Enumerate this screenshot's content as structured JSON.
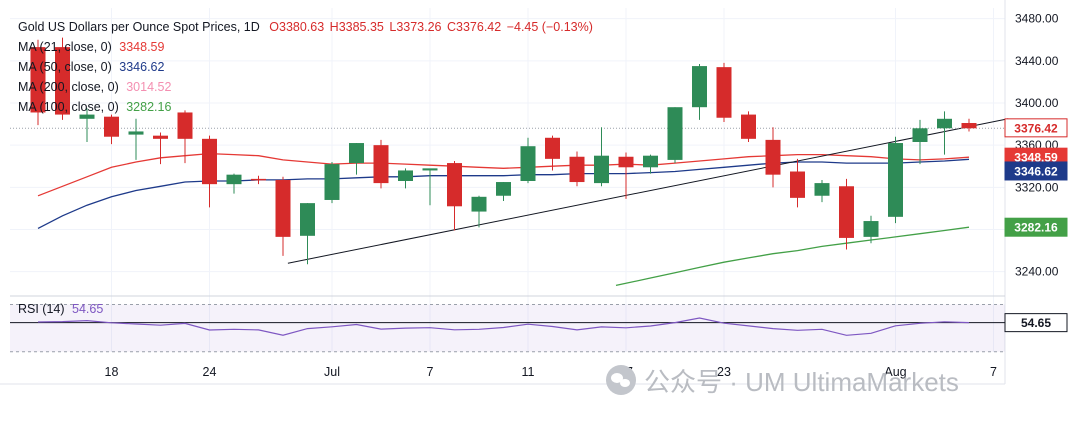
{
  "legend": {
    "title": "Gold US Dollars per Ounce Spot Prices, 1D",
    "open_label": "O",
    "open": "3380.63",
    "high_label": "H",
    "high": "3385.35",
    "low_label": "L",
    "low": "3373.26",
    "close_label": "C",
    "close": "3376.42",
    "change": "−4.45 (−0.13%)",
    "ma_rows": [
      {
        "label": "MA (21, close, 0)",
        "value": "3348.59",
        "color": "#e53935"
      },
      {
        "label": "MA (50, close, 0)",
        "value": "3346.62",
        "color": "#1e3a8a"
      },
      {
        "label": "MA (200, close, 0)",
        "value": "3014.52",
        "color": "#f48fb1"
      },
      {
        "label": "MA (100, close, 0)",
        "value": "3282.16",
        "color": "#43a047"
      }
    ]
  },
  "rsi_legend": {
    "label": "RSI (14)",
    "value": "54.65"
  },
  "price_tags": [
    {
      "text": "3376.42",
      "bg": "#ffffff",
      "fg": "#d62b2b",
      "border": "#d62b2b",
      "price": 3376.42
    },
    {
      "text": "3348.59",
      "bg": "#e53935",
      "fg": "#ffffff",
      "border": "#e53935",
      "price": 3348.59
    },
    {
      "text": "3346.62",
      "bg": "#1e3a8a",
      "fg": "#ffffff",
      "border": "#1e3a8a",
      "price": 3335.5
    },
    {
      "text": "3282.16",
      "bg": "#43a047",
      "fg": "#ffffff",
      "border": "#43a047",
      "price": 3282.16
    }
  ],
  "rsi_tag": {
    "text": "54.65",
    "bg": "#ffffff",
    "fg": "#131722"
  },
  "watermark": {
    "text": "公众号 · UM UltimaMarkets"
  },
  "colors": {
    "up": "#2e8b57",
    "down": "#d62b2b",
    "wick": "#555555",
    "ma21": "#e53935",
    "ma50": "#1e3a8a",
    "ma100": "#43a047",
    "trendline": "#131722",
    "rsi": "#7e57c2",
    "grid": "#f0f3fa",
    "axis_text": "#131722"
  },
  "chart_data": {
    "type": "candlestick",
    "title": "Gold US Dollars per Ounce Spot Prices, 1D",
    "price_axis": {
      "ticks": [
        3240,
        3280,
        3320,
        3360,
        3400,
        3440,
        3480
      ],
      "range": [
        3210,
        3485
      ]
    },
    "x_ticks": [
      {
        "label": "18",
        "index": 3
      },
      {
        "label": "24",
        "index": 7
      },
      {
        "label": "Jul",
        "index": 12
      },
      {
        "label": "7",
        "index": 16
      },
      {
        "label": "11",
        "index": 20
      },
      {
        "label": "17",
        "index": 24
      },
      {
        "label": "23",
        "index": 28
      },
      {
        "label": "Aug",
        "index": 35
      },
      {
        "label": "7",
        "index": 39
      }
    ],
    "candles": [
      {
        "o": 3453,
        "h": 3460,
        "l": 3379,
        "c": 3391
      },
      {
        "o": 3453,
        "h": 3462,
        "l": 3384,
        "c": 3389
      },
      {
        "o": 3385,
        "h": 3395,
        "l": 3363,
        "c": 3389
      },
      {
        "o": 3387,
        "h": 3389,
        "l": 3361,
        "c": 3368
      },
      {
        "o": 3370,
        "h": 3385,
        "l": 3346,
        "c": 3373
      },
      {
        "o": 3369,
        "h": 3372,
        "l": 3342,
        "c": 3366
      },
      {
        "o": 3391,
        "h": 3393,
        "l": 3343,
        "c": 3366
      },
      {
        "o": 3366,
        "h": 3369,
        "l": 3301,
        "c": 3323
      },
      {
        "o": 3323,
        "h": 3333,
        "l": 3314,
        "c": 3332
      },
      {
        "o": 3328,
        "h": 3331,
        "l": 3323,
        "c": 3327
      },
      {
        "o": 3327,
        "h": 3330,
        "l": 3255,
        "c": 3273
      },
      {
        "o": 3274,
        "h": 3305,
        "l": 3247,
        "c": 3305
      },
      {
        "o": 3308,
        "h": 3344,
        "l": 3305,
        "c": 3342
      },
      {
        "o": 3343,
        "h": 3362,
        "l": 3332,
        "c": 3362
      },
      {
        "o": 3360,
        "h": 3365,
        "l": 3319,
        "c": 3324
      },
      {
        "o": 3326,
        "h": 3338,
        "l": 3319,
        "c": 3336
      },
      {
        "o": 3336,
        "h": 3337,
        "l": 3303,
        "c": 3338
      },
      {
        "o": 3343,
        "h": 3345,
        "l": 3279,
        "c": 3302
      },
      {
        "o": 3297,
        "h": 3312,
        "l": 3282,
        "c": 3311
      },
      {
        "o": 3312,
        "h": 3325,
        "l": 3307,
        "c": 3325
      },
      {
        "o": 3326,
        "h": 3367,
        "l": 3324,
        "c": 3359
      },
      {
        "o": 3367,
        "h": 3369,
        "l": 3336,
        "c": 3347
      },
      {
        "o": 3349,
        "h": 3354,
        "l": 3321,
        "c": 3325
      },
      {
        "o": 3324,
        "h": 3377,
        "l": 3321,
        "c": 3350
      },
      {
        "o": 3349,
        "h": 3353,
        "l": 3309,
        "c": 3339
      },
      {
        "o": 3339,
        "h": 3351,
        "l": 3333,
        "c": 3350
      },
      {
        "o": 3346,
        "h": 3396,
        "l": 3343,
        "c": 3396
      },
      {
        "o": 3396,
        "h": 3437,
        "l": 3384,
        "c": 3435
      },
      {
        "o": 3434,
        "h": 3438,
        "l": 3382,
        "c": 3386
      },
      {
        "o": 3389,
        "h": 3392,
        "l": 3363,
        "c": 3366
      },
      {
        "o": 3365,
        "h": 3377,
        "l": 3320,
        "c": 3332
      },
      {
        "o": 3335,
        "h": 3347,
        "l": 3301,
        "c": 3310
      },
      {
        "o": 3312,
        "h": 3327,
        "l": 3306,
        "c": 3324
      },
      {
        "o": 3321,
        "h": 3328,
        "l": 3261,
        "c": 3272
      },
      {
        "o": 3273,
        "h": 3293,
        "l": 3267,
        "c": 3288
      },
      {
        "o": 3292,
        "h": 3368,
        "l": 3286,
        "c": 3362
      },
      {
        "o": 3363,
        "h": 3384,
        "l": 3342,
        "c": 3376
      },
      {
        "o": 3376,
        "h": 3392,
        "l": 3351,
        "c": 3385
      },
      {
        "o": 3381,
        "h": 3385,
        "l": 3373,
        "c": 3376
      }
    ],
    "series": [
      {
        "name": "MA (21, close, 0)",
        "color": "#e53935",
        "values": [
          3312,
          3321,
          3330,
          3339,
          3344,
          3348,
          3350,
          3352,
          3351,
          3350,
          3346,
          3344,
          3342,
          3343,
          3343,
          3342,
          3341,
          3340,
          3339,
          3338,
          3339,
          3340,
          3341,
          3341,
          3342,
          3341,
          3343,
          3345,
          3347,
          3349,
          3350,
          3351,
          3351,
          3350,
          3349,
          3347,
          3346,
          3347,
          3348.59
        ]
      },
      {
        "name": "MA (50, close, 0)",
        "color": "#1e3a8a",
        "values": [
          3281,
          3293,
          3303,
          3311,
          3317,
          3321,
          3325,
          3326,
          3326,
          3327,
          3327,
          3328,
          3328,
          3329,
          3330,
          3330,
          3331,
          3331,
          3331,
          3331,
          3332,
          3332,
          3333,
          3333,
          3333,
          3334,
          3335,
          3337,
          3339,
          3341,
          3343,
          3344,
          3344,
          3343,
          3343,
          3343,
          3344,
          3345,
          3346.62
        ]
      },
      {
        "name": "MA (100, close, 0)",
        "color": "#43a047",
        "values": [
          null,
          null,
          null,
          null,
          null,
          null,
          null,
          null,
          null,
          null,
          null,
          null,
          null,
          null,
          null,
          null,
          null,
          null,
          null,
          null,
          null,
          null,
          null,
          null,
          3229,
          3234,
          3239,
          3244,
          3249,
          3253,
          3257,
          3260,
          3264,
          3267,
          3270,
          3273,
          3276,
          3279,
          3282.16
        ]
      }
    ],
    "trendline": {
      "from": {
        "index": 10.2,
        "price": 3248
      },
      "to": {
        "index": 39.6,
        "price": 3385
      }
    },
    "rsi": {
      "name": "RSI (14)",
      "range": [
        0,
        100
      ],
      "levels": [
        30,
        70
      ],
      "values": [
        55.2,
        55.5,
        56.4,
        54.5,
        53.5,
        52.5,
        54.0,
        48.4,
        49.0,
        48.5,
        44.0,
        49.6,
        51.1,
        53.1,
        49.2,
        50.0,
        50.4,
        48.6,
        49.0,
        50.5,
        53.3,
        51.4,
        48.5,
        51.0,
        50.3,
        51.8,
        54.7,
        58.6,
        54.2,
        51.9,
        49.6,
        48.2,
        49.0,
        43.9,
        45.6,
        52.0,
        54.1,
        55.4,
        54.65
      ]
    }
  }
}
